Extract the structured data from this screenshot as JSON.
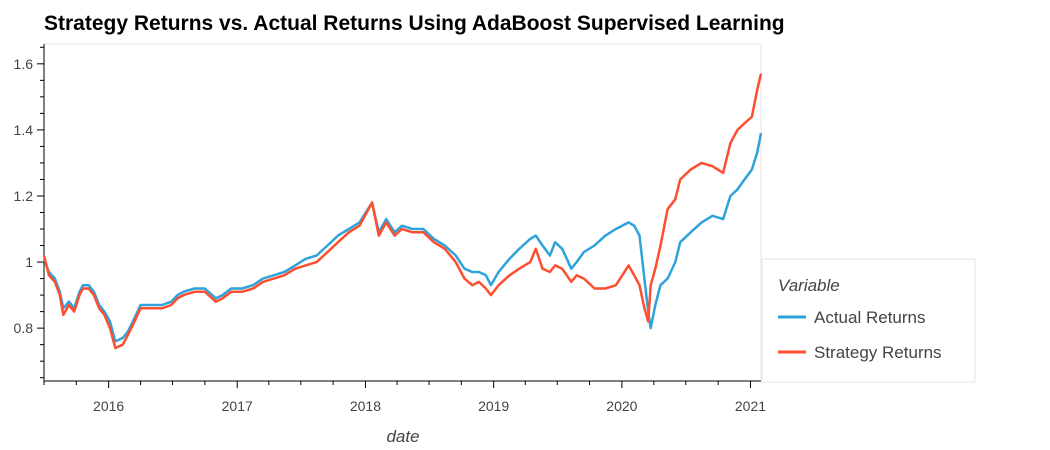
{
  "chart_data": {
    "type": "line",
    "title": "Strategy Returns vs. Actual Returns Using AdaBoost Supervised Learning",
    "xlabel": "date",
    "ylabel": "",
    "xlim": [
      "2015-07-01",
      "2021-01-31"
    ],
    "ylim": [
      0.64,
      1.66
    ],
    "x_ticks": [
      {
        "date": "2016-01-01",
        "label": "2016"
      },
      {
        "date": "2017-01-01",
        "label": "2017"
      },
      {
        "date": "2018-01-01",
        "label": "2018"
      },
      {
        "date": "2019-01-01",
        "label": "2019"
      },
      {
        "date": "2020-01-01",
        "label": "2020"
      },
      {
        "date": "2021-01-01",
        "label": "2021"
      }
    ],
    "y_ticks": [
      {
        "value": 0.8,
        "label": "0.8"
      },
      {
        "value": 1.0,
        "label": "1"
      },
      {
        "value": 1.2,
        "label": "1.2"
      },
      {
        "value": 1.4,
        "label": "1.4"
      },
      {
        "value": 1.6,
        "label": "1.6"
      }
    ],
    "grid": false,
    "legend": {
      "title": "Variable",
      "position": "right"
    },
    "series": [
      {
        "name": "Actual Returns",
        "color": "#30a2da",
        "points": [
          [
            "2015-07-01",
            1.01
          ],
          [
            "2015-07-15",
            0.97
          ],
          [
            "2015-08-01",
            0.95
          ],
          [
            "2015-08-15",
            0.91
          ],
          [
            "2015-08-25",
            0.86
          ],
          [
            "2015-09-10",
            0.88
          ],
          [
            "2015-09-25",
            0.86
          ],
          [
            "2015-10-10",
            0.91
          ],
          [
            "2015-10-20",
            0.93
          ],
          [
            "2015-11-05",
            0.93
          ],
          [
            "2015-11-20",
            0.91
          ],
          [
            "2015-12-05",
            0.87
          ],
          [
            "2015-12-20",
            0.85
          ],
          [
            "2016-01-05",
            0.82
          ],
          [
            "2016-01-20",
            0.76
          ],
          [
            "2016-02-10",
            0.77
          ],
          [
            "2016-02-25",
            0.79
          ],
          [
            "2016-03-10",
            0.82
          ],
          [
            "2016-04-01",
            0.87
          ],
          [
            "2016-05-01",
            0.87
          ],
          [
            "2016-06-01",
            0.87
          ],
          [
            "2016-06-27",
            0.88
          ],
          [
            "2016-07-15",
            0.9
          ],
          [
            "2016-08-01",
            0.91
          ],
          [
            "2016-09-01",
            0.92
          ],
          [
            "2016-10-01",
            0.92
          ],
          [
            "2016-11-01",
            0.89
          ],
          [
            "2016-11-20",
            0.9
          ],
          [
            "2016-12-15",
            0.92
          ],
          [
            "2017-01-15",
            0.92
          ],
          [
            "2017-02-15",
            0.93
          ],
          [
            "2017-03-15",
            0.95
          ],
          [
            "2017-04-15",
            0.96
          ],
          [
            "2017-05-15",
            0.97
          ],
          [
            "2017-06-15",
            0.99
          ],
          [
            "2017-07-15",
            1.01
          ],
          [
            "2017-08-15",
            1.02
          ],
          [
            "2017-09-15",
            1.05
          ],
          [
            "2017-10-15",
            1.08
          ],
          [
            "2017-11-15",
            1.1
          ],
          [
            "2017-12-15",
            1.12
          ],
          [
            "2018-01-20",
            1.18
          ],
          [
            "2018-02-08",
            1.09
          ],
          [
            "2018-03-01",
            1.13
          ],
          [
            "2018-03-25",
            1.09
          ],
          [
            "2018-04-15",
            1.11
          ],
          [
            "2018-05-15",
            1.1
          ],
          [
            "2018-06-15",
            1.1
          ],
          [
            "2018-07-15",
            1.07
          ],
          [
            "2018-08-15",
            1.05
          ],
          [
            "2018-09-15",
            1.02
          ],
          [
            "2018-10-10",
            0.98
          ],
          [
            "2018-11-01",
            0.97
          ],
          [
            "2018-11-20",
            0.97
          ],
          [
            "2018-12-10",
            0.96
          ],
          [
            "2018-12-24",
            0.93
          ],
          [
            "2019-01-15",
            0.97
          ],
          [
            "2019-02-15",
            1.01
          ],
          [
            "2019-03-15",
            1.04
          ],
          [
            "2019-04-15",
            1.07
          ],
          [
            "2019-05-01",
            1.08
          ],
          [
            "2019-05-20",
            1.05
          ],
          [
            "2019-06-10",
            1.02
          ],
          [
            "2019-06-25",
            1.06
          ],
          [
            "2019-07-15",
            1.04
          ],
          [
            "2019-08-10",
            0.98
          ],
          [
            "2019-08-25",
            1.0
          ],
          [
            "2019-09-15",
            1.03
          ],
          [
            "2019-10-15",
            1.05
          ],
          [
            "2019-11-15",
            1.08
          ],
          [
            "2019-12-15",
            1.1
          ],
          [
            "2020-01-20",
            1.12
          ],
          [
            "2020-02-05",
            1.11
          ],
          [
            "2020-02-20",
            1.08
          ],
          [
            "2020-03-05",
            0.95
          ],
          [
            "2020-03-16",
            0.85
          ],
          [
            "2020-03-23",
            0.8
          ],
          [
            "2020-04-05",
            0.87
          ],
          [
            "2020-04-20",
            0.93
          ],
          [
            "2020-05-10",
            0.95
          ],
          [
            "2020-06-01",
            1.0
          ],
          [
            "2020-06-15",
            1.06
          ],
          [
            "2020-07-15",
            1.09
          ],
          [
            "2020-08-15",
            1.12
          ],
          [
            "2020-09-15",
            1.14
          ],
          [
            "2020-10-15",
            1.13
          ],
          [
            "2020-11-05",
            1.2
          ],
          [
            "2020-11-25",
            1.22
          ],
          [
            "2020-12-15",
            1.25
          ],
          [
            "2021-01-05",
            1.28
          ],
          [
            "2021-01-20",
            1.33
          ],
          [
            "2021-01-31",
            1.39
          ]
        ]
      },
      {
        "name": "Strategy Returns",
        "color": "#fc4f30",
        "points": [
          [
            "2015-07-01",
            1.02
          ],
          [
            "2015-07-15",
            0.96
          ],
          [
            "2015-08-01",
            0.94
          ],
          [
            "2015-08-15",
            0.9
          ],
          [
            "2015-08-25",
            0.84
          ],
          [
            "2015-09-10",
            0.87
          ],
          [
            "2015-09-25",
            0.85
          ],
          [
            "2015-10-10",
            0.9
          ],
          [
            "2015-10-20",
            0.92
          ],
          [
            "2015-11-05",
            0.92
          ],
          [
            "2015-11-20",
            0.9
          ],
          [
            "2015-12-05",
            0.86
          ],
          [
            "2015-12-20",
            0.84
          ],
          [
            "2016-01-05",
            0.8
          ],
          [
            "2016-01-20",
            0.74
          ],
          [
            "2016-02-10",
            0.75
          ],
          [
            "2016-02-25",
            0.78
          ],
          [
            "2016-03-10",
            0.81
          ],
          [
            "2016-04-01",
            0.86
          ],
          [
            "2016-05-01",
            0.86
          ],
          [
            "2016-06-01",
            0.86
          ],
          [
            "2016-06-27",
            0.87
          ],
          [
            "2016-07-15",
            0.89
          ],
          [
            "2016-08-01",
            0.9
          ],
          [
            "2016-09-01",
            0.91
          ],
          [
            "2016-10-01",
            0.91
          ],
          [
            "2016-11-01",
            0.88
          ],
          [
            "2016-11-20",
            0.89
          ],
          [
            "2016-12-15",
            0.91
          ],
          [
            "2017-01-15",
            0.91
          ],
          [
            "2017-02-15",
            0.92
          ],
          [
            "2017-03-15",
            0.94
          ],
          [
            "2017-04-15",
            0.95
          ],
          [
            "2017-05-15",
            0.96
          ],
          [
            "2017-06-15",
            0.98
          ],
          [
            "2017-07-15",
            0.99
          ],
          [
            "2017-08-15",
            1.0
          ],
          [
            "2017-09-15",
            1.03
          ],
          [
            "2017-10-15",
            1.06
          ],
          [
            "2017-11-15",
            1.09
          ],
          [
            "2017-12-15",
            1.11
          ],
          [
            "2018-01-20",
            1.18
          ],
          [
            "2018-02-08",
            1.08
          ],
          [
            "2018-03-01",
            1.12
          ],
          [
            "2018-03-25",
            1.08
          ],
          [
            "2018-04-15",
            1.1
          ],
          [
            "2018-05-15",
            1.09
          ],
          [
            "2018-06-15",
            1.09
          ],
          [
            "2018-07-15",
            1.06
          ],
          [
            "2018-08-15",
            1.04
          ],
          [
            "2018-09-15",
            1.0
          ],
          [
            "2018-10-10",
            0.95
          ],
          [
            "2018-11-01",
            0.93
          ],
          [
            "2018-11-20",
            0.94
          ],
          [
            "2018-12-10",
            0.92
          ],
          [
            "2018-12-24",
            0.9
          ],
          [
            "2019-01-15",
            0.93
          ],
          [
            "2019-02-15",
            0.96
          ],
          [
            "2019-03-15",
            0.98
          ],
          [
            "2019-04-15",
            1.0
          ],
          [
            "2019-05-01",
            1.04
          ],
          [
            "2019-05-20",
            0.98
          ],
          [
            "2019-06-10",
            0.97
          ],
          [
            "2019-06-25",
            0.99
          ],
          [
            "2019-07-15",
            0.98
          ],
          [
            "2019-08-10",
            0.94
          ],
          [
            "2019-08-25",
            0.96
          ],
          [
            "2019-09-15",
            0.95
          ],
          [
            "2019-10-15",
            0.92
          ],
          [
            "2019-11-15",
            0.92
          ],
          [
            "2019-12-15",
            0.93
          ],
          [
            "2020-01-20",
            0.99
          ],
          [
            "2020-02-05",
            0.96
          ],
          [
            "2020-02-20",
            0.93
          ],
          [
            "2020-03-05",
            0.86
          ],
          [
            "2020-03-16",
            0.82
          ],
          [
            "2020-03-23",
            0.93
          ],
          [
            "2020-04-05",
            0.98
          ],
          [
            "2020-04-20",
            1.05
          ],
          [
            "2020-05-10",
            1.16
          ],
          [
            "2020-06-01",
            1.19
          ],
          [
            "2020-06-15",
            1.25
          ],
          [
            "2020-07-15",
            1.28
          ],
          [
            "2020-08-15",
            1.3
          ],
          [
            "2020-09-15",
            1.29
          ],
          [
            "2020-10-15",
            1.27
          ],
          [
            "2020-11-05",
            1.36
          ],
          [
            "2020-11-25",
            1.4
          ],
          [
            "2020-12-15",
            1.42
          ],
          [
            "2021-01-05",
            1.44
          ],
          [
            "2021-01-20",
            1.52
          ],
          [
            "2021-01-31",
            1.57
          ]
        ]
      }
    ]
  }
}
